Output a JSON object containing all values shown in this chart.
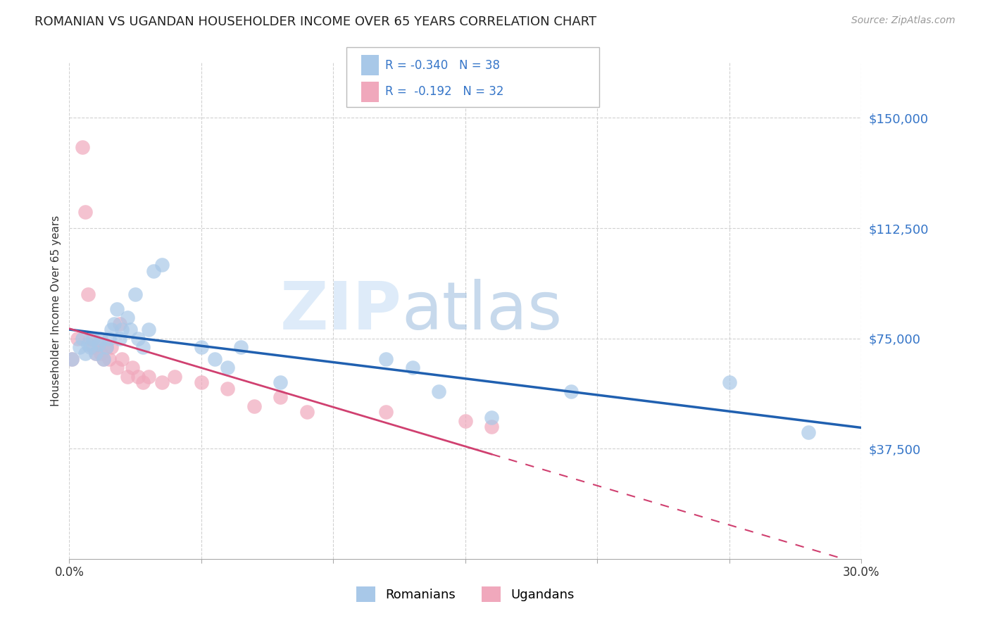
{
  "title": "ROMANIAN VS UGANDAN HOUSEHOLDER INCOME OVER 65 YEARS CORRELATION CHART",
  "source": "Source: ZipAtlas.com",
  "ylabel": "Householder Income Over 65 years",
  "romanian_color": "#a8c8e8",
  "ugandan_color": "#f0a8bc",
  "romanian_line_color": "#2060b0",
  "ugandan_line_color": "#d04070",
  "watermark_zip": "ZIP",
  "watermark_atlas": "atlas",
  "ylim": [
    0,
    168750
  ],
  "xlim": [
    0.0,
    0.3
  ],
  "yticks": [
    37500,
    75000,
    112500,
    150000
  ],
  "ytick_labels": [
    "$37,500",
    "$75,000",
    "$112,500",
    "$150,000"
  ],
  "xtick_positions": [
    0.0,
    0.05,
    0.1,
    0.15,
    0.2,
    0.25,
    0.3
  ],
  "xtick_labels": [
    "0.0%",
    "",
    "",
    "",
    "",
    "",
    "30.0%"
  ],
  "romanian_x": [
    0.001,
    0.004,
    0.005,
    0.006,
    0.007,
    0.008,
    0.009,
    0.01,
    0.011,
    0.012,
    0.013,
    0.014,
    0.015,
    0.016,
    0.017,
    0.018,
    0.019,
    0.02,
    0.022,
    0.023,
    0.025,
    0.026,
    0.028,
    0.03,
    0.032,
    0.035,
    0.05,
    0.055,
    0.06,
    0.065,
    0.08,
    0.12,
    0.13,
    0.14,
    0.16,
    0.19,
    0.25,
    0.28
  ],
  "romanian_y": [
    68000,
    72000,
    75000,
    70000,
    73000,
    72000,
    75000,
    70000,
    73000,
    75000,
    68000,
    72000,
    75000,
    78000,
    80000,
    85000,
    75000,
    78000,
    82000,
    78000,
    90000,
    75000,
    72000,
    78000,
    98000,
    100000,
    72000,
    68000,
    65000,
    72000,
    60000,
    68000,
    65000,
    57000,
    48000,
    57000,
    60000,
    43000
  ],
  "ugandan_x": [
    0.001,
    0.003,
    0.005,
    0.006,
    0.007,
    0.008,
    0.009,
    0.01,
    0.011,
    0.012,
    0.013,
    0.014,
    0.015,
    0.016,
    0.018,
    0.019,
    0.02,
    0.022,
    0.024,
    0.026,
    0.028,
    0.03,
    0.035,
    0.04,
    0.05,
    0.06,
    0.07,
    0.08,
    0.09,
    0.12,
    0.15,
    0.16
  ],
  "ugandan_y": [
    68000,
    75000,
    140000,
    118000,
    90000,
    75000,
    72000,
    70000,
    73000,
    70000,
    68000,
    72000,
    68000,
    72000,
    65000,
    80000,
    68000,
    62000,
    65000,
    62000,
    60000,
    62000,
    60000,
    62000,
    60000,
    58000,
    52000,
    55000,
    50000,
    50000,
    47000,
    45000
  ],
  "legend_r1": "R = -0.340   N = 38",
  "legend_r2": "R =  -0.192   N = 32"
}
